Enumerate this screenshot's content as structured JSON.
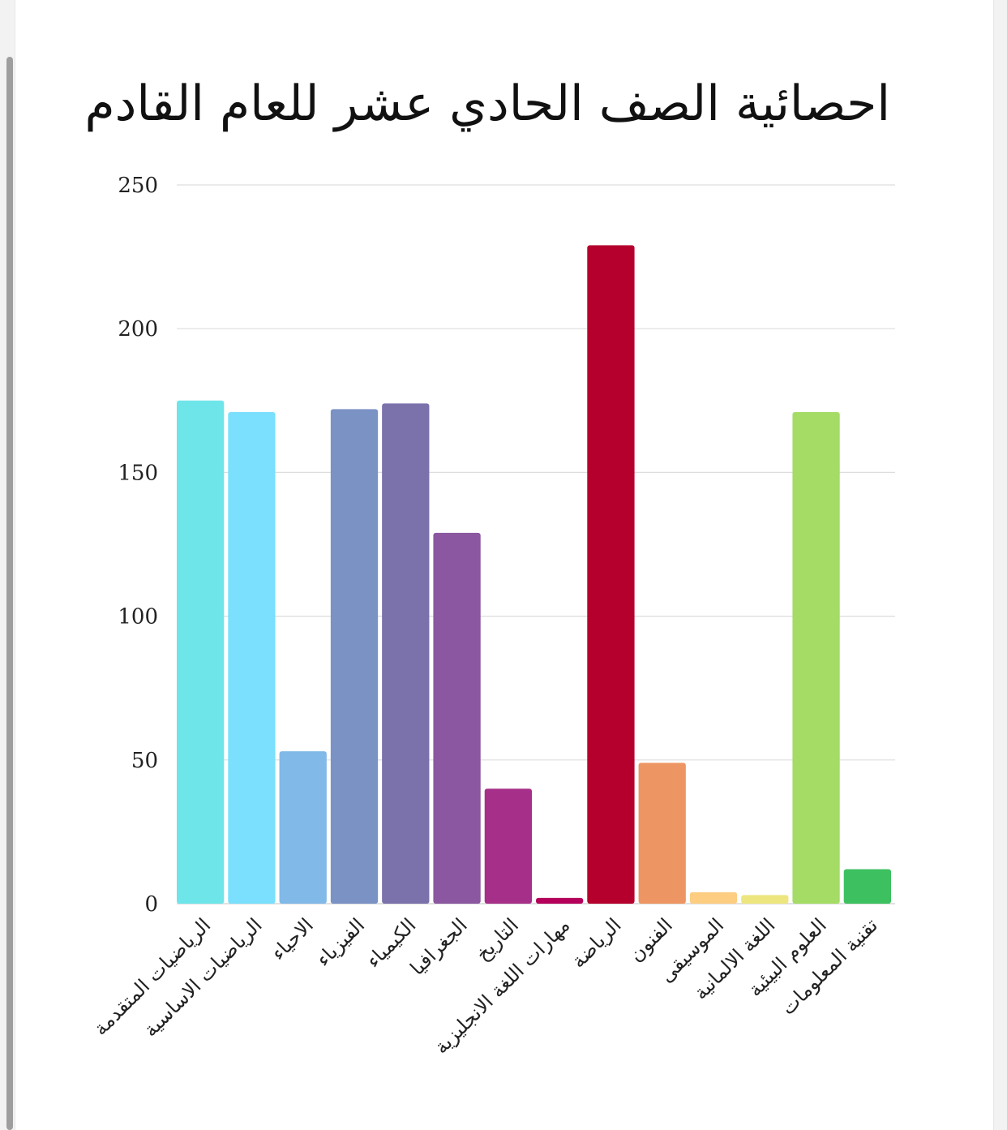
{
  "chart_data": {
    "type": "bar",
    "title": "احصائية الصف الحادي عشر للعام القادم",
    "xlabel": "",
    "ylabel": "",
    "ylim": [
      0,
      250
    ],
    "yticks": [
      0,
      50,
      100,
      150,
      200,
      250
    ],
    "grid": true,
    "categories": [
      "الرياضيات المتقدمة",
      "الرياضيات الاساسية",
      "الاحياء",
      "الفيزياء",
      "الكيمياء",
      "الجغرافيا",
      "التاريخ",
      "مهارات اللغة الانجليزية",
      "الرياضة",
      "الفنون",
      "الموسيقى",
      "اللغة الالمانية",
      "العلوم البيئية",
      "تقنية المعلومات"
    ],
    "values": [
      175,
      171,
      53,
      172,
      174,
      129,
      40,
      2,
      229,
      49,
      4,
      3,
      171,
      12
    ],
    "colors": [
      "#6ee5e9",
      "#7ae0fd",
      "#81b9e8",
      "#7b92c5",
      "#7b71ab",
      "#8a57a0",
      "#a63089",
      "#b5005b",
      "#b5002d",
      "#ed9663",
      "#fdcd82",
      "#ede67f",
      "#a4dc66",
      "#3dc160"
    ]
  }
}
